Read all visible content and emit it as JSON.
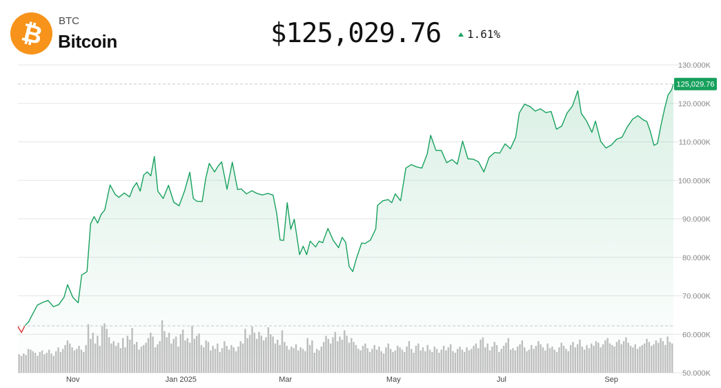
{
  "asset": {
    "symbol": "BTC",
    "name": "Bitcoin",
    "logo_glyph": "₿",
    "logo_color": "#F7931A",
    "price": "$125,029.76",
    "change": "1.61%",
    "change_direction": "up",
    "up_color": "#16A05C",
    "down_color": "#E03131"
  },
  "chart_data": {
    "type": "area",
    "ylim": [
      50000,
      130000
    ],
    "y_ticks": [
      50000,
      60000,
      70000,
      80000,
      90000,
      100000,
      110000,
      120000,
      130000
    ],
    "y_tick_labels": [
      "50.000K",
      "60.000K",
      "70.000K",
      "80.000K",
      "90.000K",
      "100.000K",
      "110.000K",
      "120.000K",
      "130.000K"
    ],
    "x_tick_labels": [
      "Nov",
      "Jan 2025",
      "Mar",
      "May",
      "Jul",
      "Sep"
    ],
    "x_tick_dates": [
      "2024-11-01",
      "2025-01-01",
      "2025-03-01",
      "2025-05-01",
      "2025-07-01",
      "2025-09-01"
    ],
    "x_range": [
      "2024-10-01",
      "2025-10-06"
    ],
    "last_value": 125029.76,
    "last_value_label": "125,029.76",
    "reference_lines": [
      {
        "value": 125029.76,
        "style": "dashed"
      },
      {
        "value": 62200,
        "style": "dashed"
      }
    ],
    "grid": true,
    "series": [
      {
        "color": "#16A05C",
        "points": [
          [
            "2024-10-01",
            62000
          ],
          [
            "2024-10-03",
            60500
          ],
          [
            "2024-10-05",
            62300
          ],
          [
            "2024-10-07",
            63200
          ],
          [
            "2024-10-09",
            65000
          ],
          [
            "2024-10-12",
            67600
          ],
          [
            "2024-10-15",
            68300
          ],
          [
            "2024-10-18",
            68800
          ],
          [
            "2024-10-21",
            67200
          ],
          [
            "2024-10-24",
            67700
          ],
          [
            "2024-10-27",
            69600
          ],
          [
            "2024-10-29",
            72900
          ],
          [
            "2024-11-01",
            69600
          ],
          [
            "2024-11-04",
            68200
          ],
          [
            "2024-11-06",
            75400
          ],
          [
            "2024-11-09",
            76300
          ],
          [
            "2024-11-11",
            88700
          ],
          [
            "2024-11-13",
            90600
          ],
          [
            "2024-11-15",
            88900
          ],
          [
            "2024-11-17",
            91200
          ],
          [
            "2024-11-19",
            92300
          ],
          [
            "2024-11-22",
            98800
          ],
          [
            "2024-11-25",
            96300
          ],
          [
            "2024-11-27",
            95600
          ],
          [
            "2024-11-30",
            96700
          ],
          [
            "2024-12-03",
            95700
          ],
          [
            "2024-12-05",
            98100
          ],
          [
            "2024-12-07",
            99400
          ],
          [
            "2024-12-09",
            97200
          ],
          [
            "2024-12-11",
            101400
          ],
          [
            "2024-12-13",
            102200
          ],
          [
            "2024-12-15",
            101200
          ],
          [
            "2024-12-17",
            106200
          ],
          [
            "2024-12-19",
            97200
          ],
          [
            "2024-12-22",
            95300
          ],
          [
            "2024-12-25",
            98700
          ],
          [
            "2024-12-28",
            94300
          ],
          [
            "2024-12-31",
            93400
          ],
          [
            "2025-01-03",
            97200
          ],
          [
            "2025-01-06",
            102100
          ],
          [
            "2025-01-08",
            95300
          ],
          [
            "2025-01-10",
            94600
          ],
          [
            "2025-01-13",
            94500
          ],
          [
            "2025-01-15",
            100500
          ],
          [
            "2025-01-17",
            104400
          ],
          [
            "2025-01-20",
            102200
          ],
          [
            "2025-01-22",
            103700
          ],
          [
            "2025-01-24",
            104800
          ],
          [
            "2025-01-27",
            97700
          ],
          [
            "2025-01-30",
            104700
          ],
          [
            "2025-02-02",
            97600
          ],
          [
            "2025-02-04",
            97800
          ],
          [
            "2025-02-07",
            96500
          ],
          [
            "2025-02-10",
            97300
          ],
          [
            "2025-02-13",
            96600
          ],
          [
            "2025-02-16",
            96200
          ],
          [
            "2025-02-19",
            96600
          ],
          [
            "2025-02-22",
            96200
          ],
          [
            "2025-02-24",
            91600
          ],
          [
            "2025-02-26",
            84500
          ],
          [
            "2025-02-28",
            84400
          ],
          [
            "2025-03-02",
            94200
          ],
          [
            "2025-03-04",
            87300
          ],
          [
            "2025-03-06",
            89900
          ],
          [
            "2025-03-09",
            80700
          ],
          [
            "2025-03-11",
            82900
          ],
          [
            "2025-03-13",
            80700
          ],
          [
            "2025-03-15",
            84200
          ],
          [
            "2025-03-18",
            82700
          ],
          [
            "2025-03-20",
            84200
          ],
          [
            "2025-03-22",
            83800
          ],
          [
            "2025-03-25",
            87500
          ],
          [
            "2025-03-28",
            84400
          ],
          [
            "2025-03-31",
            82500
          ],
          [
            "2025-04-02",
            85200
          ],
          [
            "2025-04-04",
            83900
          ],
          [
            "2025-04-06",
            77600
          ],
          [
            "2025-04-08",
            76300
          ],
          [
            "2025-04-10",
            79600
          ],
          [
            "2025-04-13",
            83700
          ],
          [
            "2025-04-15",
            83600
          ],
          [
            "2025-04-18",
            84500
          ],
          [
            "2025-04-21",
            87400
          ],
          [
            "2025-04-22",
            93500
          ],
          [
            "2025-04-25",
            94700
          ],
          [
            "2025-04-28",
            95000
          ],
          [
            "2025-04-30",
            94200
          ],
          [
            "2025-05-02",
            96500
          ],
          [
            "2025-05-05",
            94700
          ],
          [
            "2025-05-08",
            103200
          ],
          [
            "2025-05-11",
            104100
          ],
          [
            "2025-05-14",
            103500
          ],
          [
            "2025-05-17",
            103200
          ],
          [
            "2025-05-20",
            106800
          ],
          [
            "2025-05-22",
            111700
          ],
          [
            "2025-05-25",
            107800
          ],
          [
            "2025-05-28",
            107800
          ],
          [
            "2025-05-31",
            104600
          ],
          [
            "2025-06-03",
            105400
          ],
          [
            "2025-06-06",
            104200
          ],
          [
            "2025-06-09",
            110200
          ],
          [
            "2025-06-12",
            105600
          ],
          [
            "2025-06-15",
            105500
          ],
          [
            "2025-06-18",
            104800
          ],
          [
            "2025-06-21",
            102200
          ],
          [
            "2025-06-24",
            106000
          ],
          [
            "2025-06-27",
            107200
          ],
          [
            "2025-06-30",
            107100
          ],
          [
            "2025-07-03",
            109500
          ],
          [
            "2025-07-06",
            108200
          ],
          [
            "2025-07-09",
            111300
          ],
          [
            "2025-07-11",
            117500
          ],
          [
            "2025-07-14",
            119800
          ],
          [
            "2025-07-17",
            119200
          ],
          [
            "2025-07-20",
            118000
          ],
          [
            "2025-07-23",
            118600
          ],
          [
            "2025-07-26",
            117600
          ],
          [
            "2025-07-29",
            117900
          ],
          [
            "2025-08-01",
            113300
          ],
          [
            "2025-08-04",
            114100
          ],
          [
            "2025-08-07",
            117500
          ],
          [
            "2025-08-10",
            119300
          ],
          [
            "2025-08-13",
            123300
          ],
          [
            "2025-08-15",
            117400
          ],
          [
            "2025-08-18",
            115400
          ],
          [
            "2025-08-21",
            112500
          ],
          [
            "2025-08-23",
            115400
          ],
          [
            "2025-08-26",
            110100
          ],
          [
            "2025-08-29",
            108400
          ],
          [
            "2025-09-01",
            109200
          ],
          [
            "2025-09-04",
            110700
          ],
          [
            "2025-09-07",
            111200
          ],
          [
            "2025-09-10",
            113900
          ],
          [
            "2025-09-13",
            115900
          ],
          [
            "2025-09-16",
            116800
          ],
          [
            "2025-09-19",
            115700
          ],
          [
            "2025-09-21",
            115300
          ],
          [
            "2025-09-23",
            112700
          ],
          [
            "2025-09-25",
            109100
          ],
          [
            "2025-09-27",
            109600
          ],
          [
            "2025-09-29",
            114300
          ],
          [
            "2025-10-01",
            118600
          ],
          [
            "2025-10-03",
            122200
          ],
          [
            "2025-10-05",
            123500
          ],
          [
            "2025-10-06",
            125029.76
          ]
        ]
      }
    ],
    "volume": {
      "color": "#bfbfbf",
      "values": [
        24,
        22,
        25,
        23,
        31,
        30,
        28,
        26,
        22,
        27,
        29,
        24,
        26,
        30,
        25,
        22,
        28,
        33,
        27,
        31,
        36,
        42,
        38,
        33,
        29,
        31,
        35,
        30,
        27,
        36,
        63,
        44,
        52,
        38,
        48,
        35,
        60,
        64,
        57,
        46,
        38,
        41,
        35,
        39,
        32,
        45,
        33,
        48,
        43,
        58,
        37,
        40,
        30,
        34,
        36,
        39,
        45,
        52,
        47,
        33,
        37,
        41,
        68,
        54,
        46,
        52,
        38,
        44,
        47,
        34,
        50,
        56,
        42,
        45,
        39,
        61,
        44,
        48,
        51,
        36,
        33,
        42,
        40,
        29,
        35,
        31,
        38,
        27,
        32,
        41,
        35,
        30,
        36,
        33,
        28,
        34,
        41,
        38,
        57,
        45,
        49,
        60,
        52,
        44,
        53,
        48,
        42,
        46,
        59,
        50,
        47,
        38,
        43,
        36,
        55,
        40,
        35,
        30,
        34,
        32,
        37,
        29,
        33,
        31,
        28,
        45,
        36,
        42,
        26,
        31,
        29,
        34,
        40,
        48,
        44,
        38,
        46,
        53,
        41,
        47,
        43,
        55,
        48,
        39,
        45,
        40,
        36,
        31,
        29,
        35,
        38,
        32,
        27,
        31,
        36,
        30,
        34,
        28,
        25,
        33,
        38,
        31,
        27,
        29,
        35,
        33,
        30,
        27,
        34,
        41,
        31,
        26,
        35,
        38,
        29,
        33,
        28,
        36,
        30,
        27,
        34,
        31,
        26,
        30,
        35,
        29,
        33,
        37,
        28,
        26,
        31,
        34,
        30,
        27,
        33,
        29,
        31,
        35,
        38,
        32,
        43,
        46,
        33,
        38,
        29,
        34,
        40,
        36,
        27,
        31,
        35,
        39,
        45,
        30,
        32,
        29,
        34,
        37,
        42,
        33,
        28,
        30,
        36,
        31,
        35,
        41,
        37,
        33,
        29,
        38,
        32,
        34,
        30,
        27,
        33,
        39,
        35,
        31,
        28,
        36,
        40,
        33,
        37,
        43,
        34,
        30,
        36,
        32,
        38,
        35,
        41,
        39,
        33,
        37,
        42,
        45,
        38,
        36,
        34,
        40,
        43,
        37,
        41,
        46,
        39,
        35,
        33,
        37,
        31,
        34,
        36,
        38,
        44,
        40,
        35,
        37,
        42,
        39,
        45,
        41,
        36,
        47,
        40,
        38
      ]
    }
  }
}
